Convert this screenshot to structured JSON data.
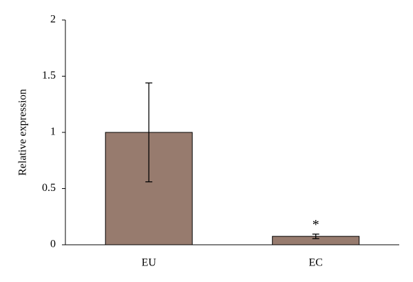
{
  "chart_data": {
    "type": "bar",
    "y_label": "Relative expression",
    "categories": [
      "EU",
      "EC"
    ],
    "values": [
      1.0,
      0.075
    ],
    "errors": [
      0.44,
      0.02
    ],
    "color": "#977b6e",
    "annotations": [
      {
        "category": 1,
        "text": "*"
      }
    ],
    "ylim": [
      0,
      2
    ],
    "yticks": [
      0,
      0.5,
      1,
      1.5,
      2
    ],
    "grid": false
  }
}
